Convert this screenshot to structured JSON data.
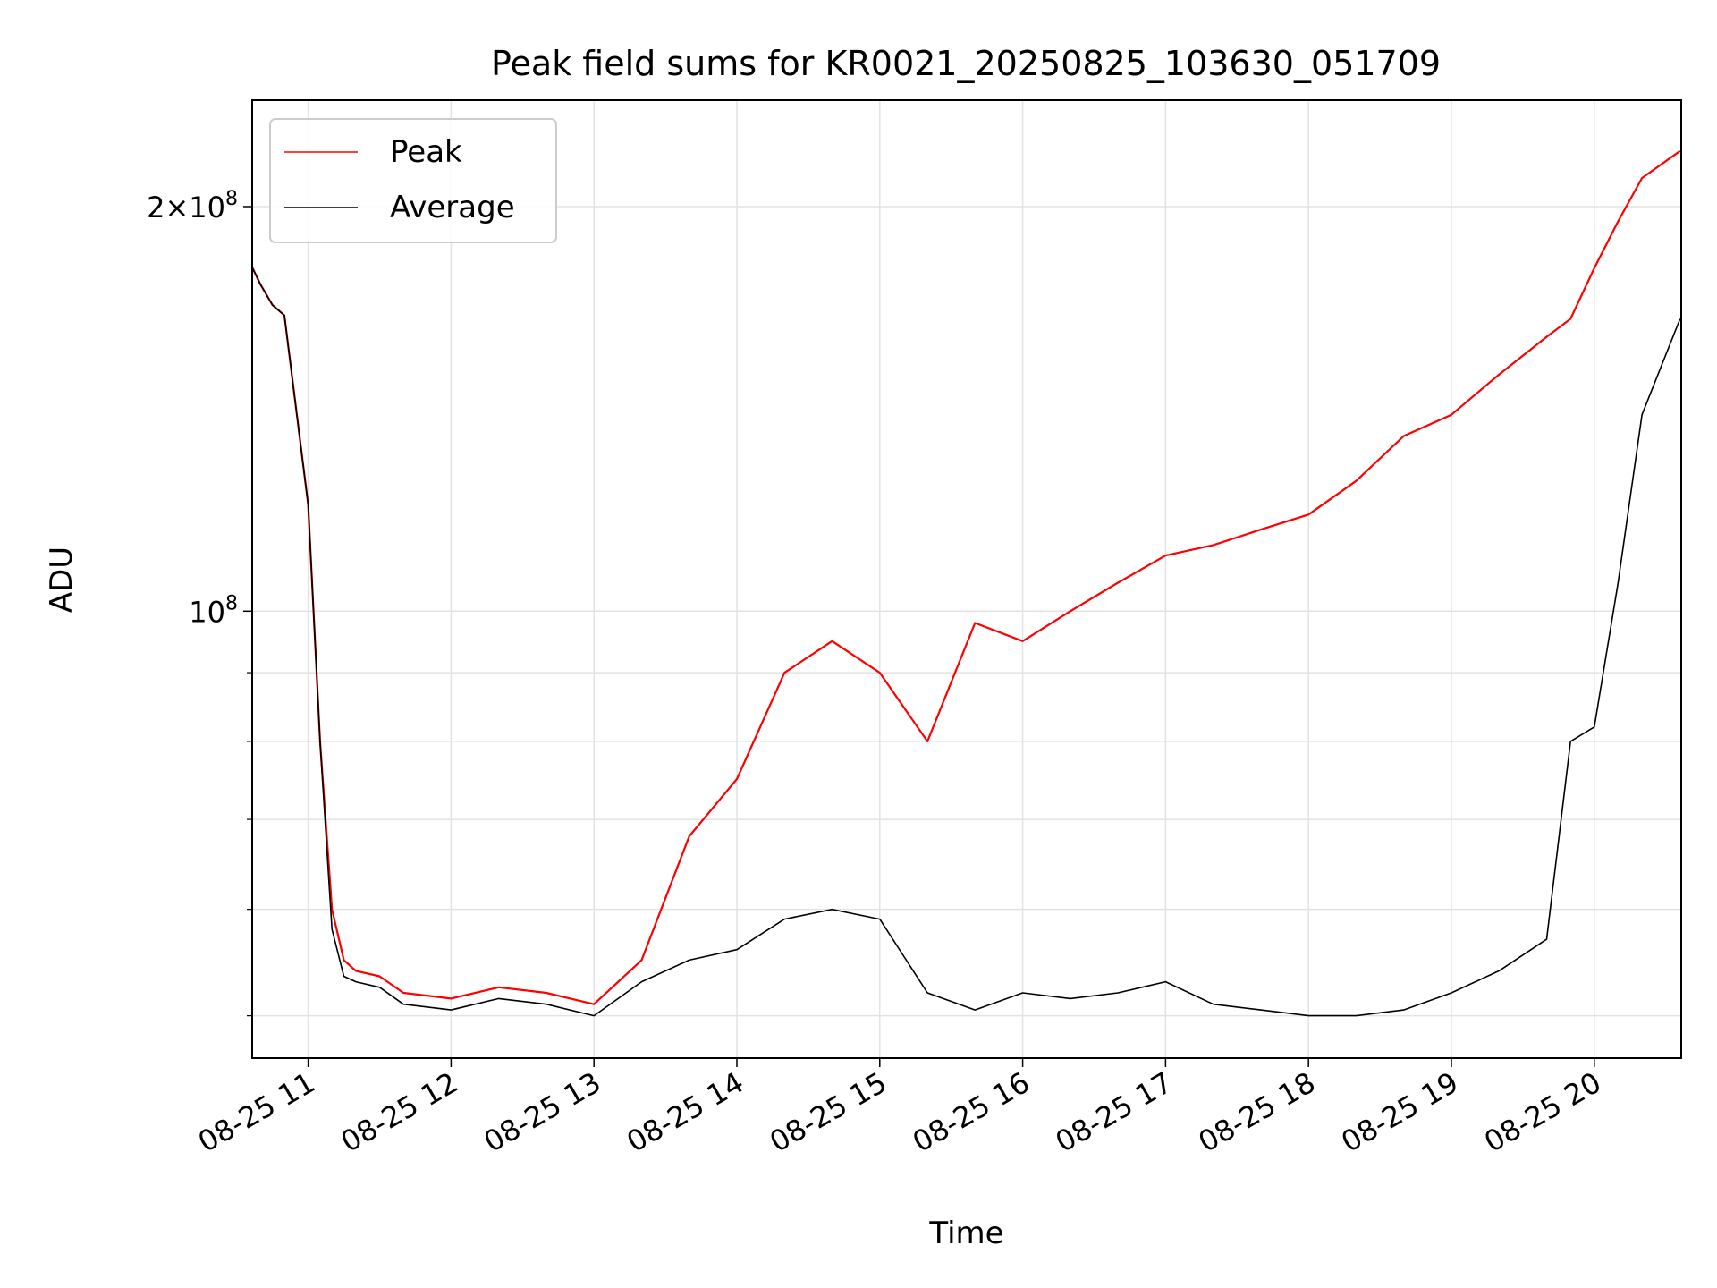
{
  "chart_data": {
    "type": "line",
    "title": "Peak field sums for KR0021_20250825_103630_051709",
    "xlabel": "Time",
    "ylabel": "ADU",
    "y_scale": "log",
    "ylim": [
      46500000,
      240000000
    ],
    "xlim": [
      "08-25 10:36:30",
      "08-25 20:36:30"
    ],
    "grid": true,
    "legend": "top-left",
    "x_ticks": [
      "08-25 11",
      "08-25 12",
      "08-25 13",
      "08-25 14",
      "08-25 15",
      "08-25 16",
      "08-25 17",
      "08-25 18",
      "08-25 19",
      "08-25 20"
    ],
    "y_major_ticks": [
      {
        "value": 100000000,
        "mantissa": "",
        "exponent": "8"
      },
      {
        "value": 200000000,
        "mantissa": "2",
        "exponent": "8"
      }
    ],
    "y_minor_ticks": [
      50000000,
      60000000,
      70000000,
      80000000,
      90000000
    ],
    "x": [
      "08-25 10:36",
      "08-25 10:40",
      "08-25 10:45",
      "08-25 10:50",
      "08-25 11:00",
      "08-25 11:05",
      "08-25 11:10",
      "08-25 11:15",
      "08-25 11:20",
      "08-25 11:30",
      "08-25 11:40",
      "08-25 12:00",
      "08-25 12:20",
      "08-25 12:40",
      "08-25 13:00",
      "08-25 13:20",
      "08-25 13:40",
      "08-25 14:00",
      "08-25 14:20",
      "08-25 14:40",
      "08-25 15:00",
      "08-25 15:20",
      "08-25 15:40",
      "08-25 16:00",
      "08-25 16:20",
      "08-25 16:40",
      "08-25 17:00",
      "08-25 17:20",
      "08-25 17:40",
      "08-25 18:00",
      "08-25 18:20",
      "08-25 18:40",
      "08-25 19:00",
      "08-25 19:20",
      "08-25 19:40",
      "08-25 19:50",
      "08-25 20:00",
      "08-25 20:10",
      "08-25 20:20",
      "08-25 20:36"
    ],
    "series": [
      {
        "name": "Peak",
        "color": "#ff0000",
        "values": [
          181000000,
          175000000,
          169000000,
          166000000,
          120000000,
          80000000,
          60000000,
          55000000,
          54000000,
          53500000,
          52000000,
          51500000,
          52500000,
          52000000,
          51000000,
          55000000,
          68000000,
          75000000,
          90000000,
          95000000,
          90000000,
          80000000,
          98000000,
          95000000,
          100000000,
          105000000,
          110000000,
          112000000,
          115000000,
          118000000,
          125000000,
          135000000,
          140000000,
          150000000,
          160000000,
          165000000,
          180000000,
          195000000,
          210000000,
          220000000
        ]
      },
      {
        "name": "Average",
        "color": "#000000",
        "values": [
          181000000,
          175000000,
          169000000,
          166000000,
          120000000,
          80000000,
          58000000,
          53500000,
          53000000,
          52500000,
          51000000,
          50500000,
          51500000,
          51000000,
          50000000,
          53000000,
          55000000,
          56000000,
          59000000,
          60000000,
          59000000,
          52000000,
          50500000,
          52000000,
          51500000,
          52000000,
          53000000,
          51000000,
          50500000,
          50000000,
          50000000,
          50500000,
          52000000,
          54000000,
          57000000,
          80000000,
          82000000,
          105000000,
          140000000,
          165000000
        ]
      }
    ]
  }
}
